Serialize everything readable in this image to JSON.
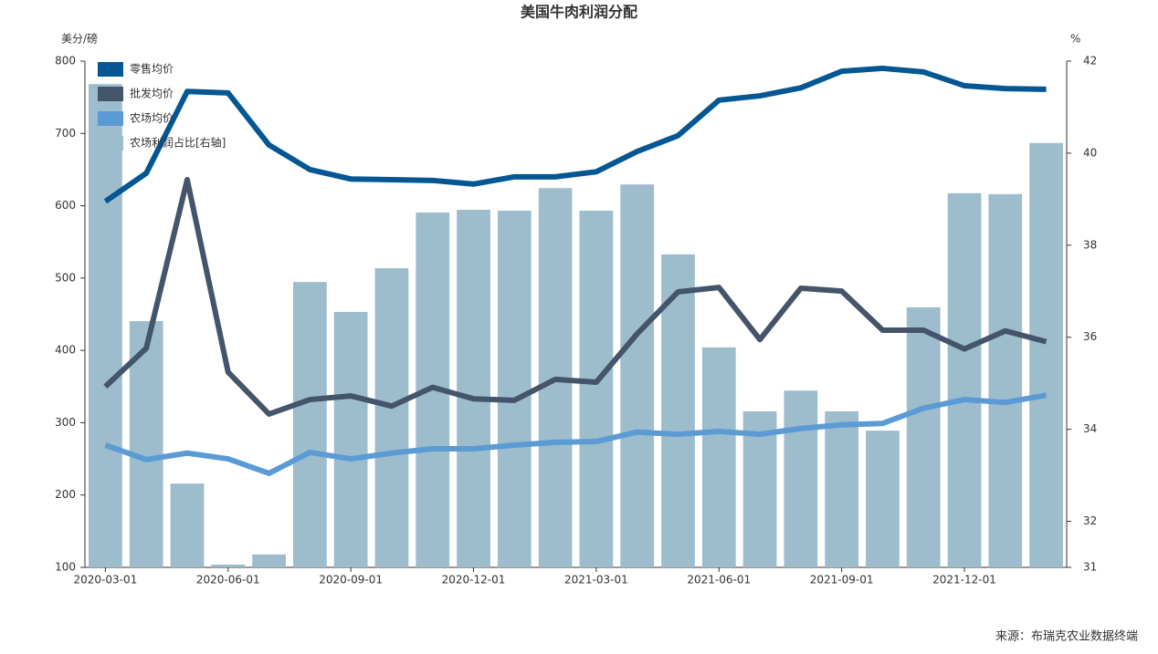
{
  "chart_data": {
    "type": "combo",
    "title": "美国牛肉利润分配",
    "ylabel": "美分/磅",
    "y2label": "%",
    "source": "来源：布瑞克农业数据终端",
    "categories": [
      "2020-03-01",
      null,
      null,
      "2020-06-01",
      null,
      null,
      "2020-09-01",
      null,
      null,
      "2020-12-01",
      null,
      null,
      "2021-03-01",
      null,
      null,
      "2021-06-01",
      null,
      null,
      "2021-09-01",
      null,
      null,
      "2021-12-01",
      null,
      null
    ],
    "series": [
      {
        "name": "零售均价",
        "type": "line",
        "color": "#045793",
        "values": [
          606,
          645,
          758,
          756,
          684,
          650,
          637,
          636,
          635,
          630,
          640,
          640,
          647,
          675,
          697,
          746,
          752,
          763,
          786,
          790,
          785,
          766,
          762,
          761
        ]
      },
      {
        "name": "批发均价",
        "type": "line",
        "color": "#44546a",
        "values": [
          350,
          403,
          636,
          370,
          312,
          332,
          337,
          323,
          349,
          333,
          331,
          360,
          356,
          423,
          481,
          487,
          415,
          486,
          482,
          428,
          428,
          402,
          427,
          412
        ]
      },
      {
        "name": "农场均价",
        "type": "line",
        "color": "#5b9bd5",
        "values": [
          269,
          249,
          258,
          250,
          230,
          259,
          250,
          258,
          264,
          264,
          269,
          273,
          274,
          287,
          284,
          288,
          284,
          292,
          297,
          299,
          320,
          332,
          328,
          338
        ]
      },
      {
        "name": "农场利润占比[右轴]",
        "type": "bar",
        "axis": "y2",
        "color": "#9dbccc",
        "values": [
          41.5,
          36.35,
          32.82,
          31.06,
          31.28,
          37.2,
          36.55,
          37.5,
          38.71,
          38.77,
          38.75,
          39.24,
          38.75,
          39.32,
          37.8,
          35.78,
          34.39,
          34.84,
          34.39,
          33.97,
          36.65,
          39.13,
          39.11,
          40.22
        ]
      }
    ],
    "ylim": [
      100,
      800
    ],
    "yticks": [
      100,
      200,
      300,
      400,
      500,
      600,
      700,
      800
    ],
    "y2lim": [
      31,
      42
    ],
    "y2ticks": [
      31,
      32,
      34,
      36,
      38,
      40,
      42
    ],
    "legend": "upper left"
  }
}
